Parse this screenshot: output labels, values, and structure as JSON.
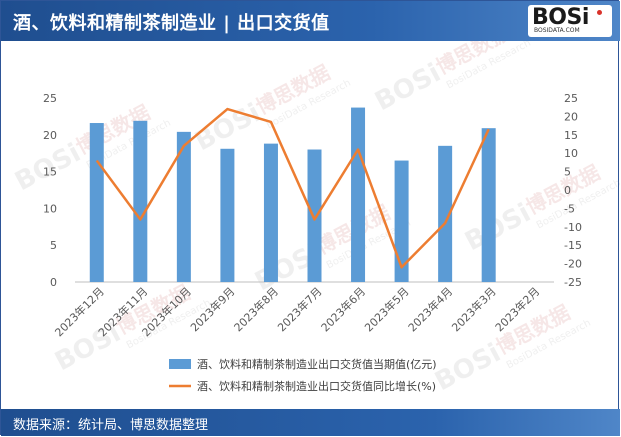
{
  "header": {
    "title": "酒、饮料和精制茶制造业 | 出口交货值",
    "logo_text": "BOSi",
    "logo_sub": "BOSIDATA.COM"
  },
  "footer": {
    "source": "数据来源：统计局、博思数据整理"
  },
  "watermark": {
    "brand": "BOSi",
    "cn": "博思数据",
    "en": "BosiData Research"
  },
  "colors": {
    "bar": "#5b9bd5",
    "line": "#ed7d31",
    "header": "#1f4e8f"
  },
  "chart_data": {
    "type": "bar",
    "categories": [
      "2023年12月",
      "2023年11月",
      "2023年10月",
      "2023年9月",
      "2023年8月",
      "2023年7月",
      "2023年6月",
      "2023年5月",
      "2023年4月",
      "2023年3月",
      "2023年2月"
    ],
    "series": [
      {
        "name": "酒、饮料和精制茶制造业出口交货值当期值(亿元)",
        "type": "bar",
        "axis": "left",
        "values": [
          21.6,
          21.9,
          20.4,
          18.1,
          18.8,
          18.0,
          23.7,
          16.5,
          18.5,
          20.9,
          null
        ]
      },
      {
        "name": "酒、饮料和精制茶制造业出口交货值同比增长(%)",
        "type": "line",
        "axis": "right",
        "values": [
          8.0,
          -8.0,
          12.0,
          22.0,
          18.5,
          -8.0,
          11.0,
          -21.0,
          -9.0,
          16.5,
          null
        ]
      }
    ],
    "y_left": {
      "min": 0,
      "max": 25,
      "ticks": [
        "0",
        "5",
        "10",
        "15",
        "20",
        "25"
      ]
    },
    "y_right": {
      "min": -25,
      "max": 25,
      "ticks": [
        "-25",
        "-20",
        "-15",
        "-10",
        "-5",
        "0",
        "5",
        "10",
        "15",
        "20",
        "25"
      ]
    },
    "grid": false,
    "legend_position": "bottom"
  }
}
